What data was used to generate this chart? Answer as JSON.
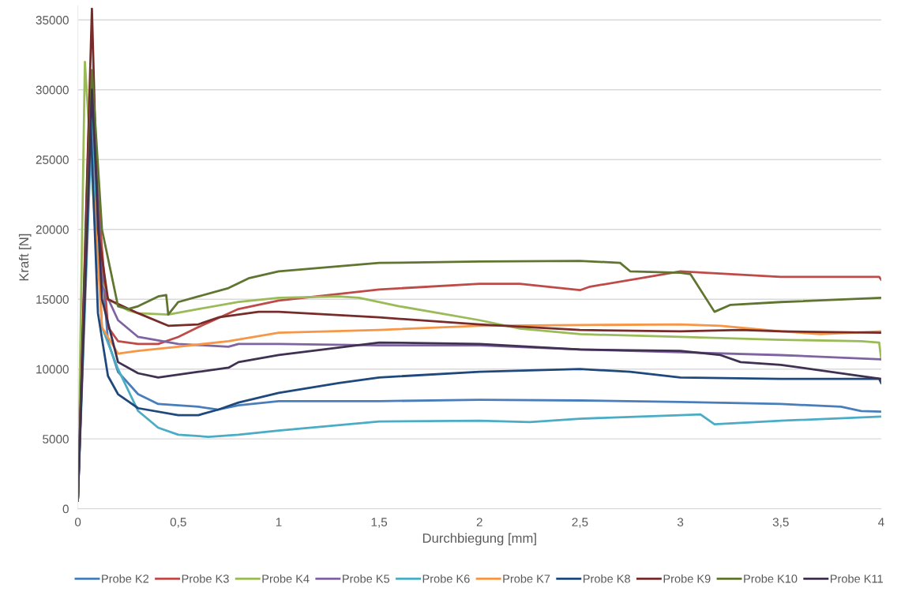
{
  "chart_data": {
    "type": "line",
    "xlabel": "Durchbiegung [mm]",
    "ylabel": "Kraft [N]",
    "xlim": [
      0,
      4
    ],
    "ylim": [
      0,
      36000
    ],
    "xticks": [
      0,
      {
        "value": 0.5,
        "label": "0,5"
      },
      1,
      {
        "value": 1.5,
        "label": "1,5"
      },
      2,
      {
        "value": 2.5,
        "label": "2,5"
      },
      3,
      {
        "value": 3.5,
        "label": "3,5"
      },
      4
    ],
    "yticks": [
      0,
      5000,
      10000,
      15000,
      20000,
      25000,
      30000,
      35000
    ],
    "grid": "y",
    "legend": "bottom",
    "marker": "none",
    "line_style": "solid",
    "series": [
      {
        "name": "Probe K2",
        "color": "#4a7ebb",
        "x": [
          0,
          0.06,
          0.15,
          0.2,
          0.3,
          0.4,
          0.5,
          0.6,
          0.7,
          0.8,
          1.0,
          1.5,
          2,
          2.5,
          3,
          3.5,
          3.8,
          3.9,
          4
        ],
        "values": [
          600,
          28000,
          12000,
          9800,
          8200,
          7500,
          7400,
          7300,
          7100,
          7400,
          7700,
          7700,
          7800,
          7750,
          7650,
          7500,
          7300,
          7000,
          6950
        ]
      },
      {
        "name": "Probe K3",
        "color": "#be4b48",
        "x": [
          0,
          0.06,
          0.15,
          0.2,
          0.3,
          0.4,
          0.5,
          0.6,
          0.8,
          1.0,
          1.5,
          2.0,
          2.2,
          2.5,
          2.55,
          2.8,
          3.0,
          3.5,
          3.99,
          4.0
        ],
        "values": [
          600,
          30000,
          13000,
          12000,
          11800,
          11800,
          12300,
          13000,
          14300,
          14900,
          15700,
          16100,
          16100,
          15650,
          15900,
          16500,
          17000,
          16600,
          16600,
          16400
        ]
      },
      {
        "name": "Probe K4",
        "color": "#9bbb59",
        "x": [
          0,
          0.035,
          0.1,
          0.15,
          0.25,
          0.3,
          0.45,
          0.6,
          0.8,
          1.0,
          1.3,
          1.4,
          1.6,
          1.8,
          2.0,
          2.2,
          2.5,
          3.0,
          3.5,
          3.9,
          3.99,
          4.0
        ],
        "values": [
          600,
          32000,
          17000,
          15000,
          14200,
          14000,
          13900,
          14300,
          14800,
          15100,
          15200,
          15100,
          14500,
          14000,
          13500,
          12900,
          12500,
          12300,
          12100,
          12000,
          11900,
          10700
        ]
      },
      {
        "name": "Probe K5",
        "color": "#8064a2",
        "x": [
          0,
          0.07,
          0.12,
          0.2,
          0.3,
          0.5,
          0.75,
          0.8,
          1.0,
          1.5,
          2,
          2.5,
          3,
          3.5,
          4
        ],
        "values": [
          600,
          30700,
          16000,
          13500,
          12300,
          11800,
          11600,
          11800,
          11800,
          11700,
          11700,
          11400,
          11200,
          11000,
          10700
        ]
      },
      {
        "name": "Probe K6",
        "color": "#4bacc6",
        "x": [
          0,
          0.07,
          0.12,
          0.2,
          0.3,
          0.4,
          0.5,
          0.65,
          0.8,
          1.0,
          1.5,
          2,
          2.25,
          2.5,
          3.0,
          3.1,
          3.17,
          3.5,
          4
        ],
        "values": [
          600,
          28000,
          13000,
          10000,
          7000,
          5800,
          5300,
          5150,
          5300,
          5600,
          6250,
          6300,
          6200,
          6450,
          6700,
          6750,
          6050,
          6300,
          6600
        ]
      },
      {
        "name": "Probe K7",
        "color": "#f79646",
        "x": [
          0,
          0.06,
          0.12,
          0.2,
          0.3,
          0.5,
          0.75,
          1.0,
          1.5,
          2.0,
          2.5,
          3.0,
          3.2,
          3.5,
          3.7,
          4.0
        ],
        "values": [
          600,
          27000,
          13000,
          11100,
          11300,
          11600,
          12000,
          12600,
          12800,
          13100,
          13150,
          13200,
          13100,
          12700,
          12500,
          12700
        ]
      },
      {
        "name": "Probe K8",
        "color": "#1f497d",
        "x": [
          0,
          0.06,
          0.1,
          0.15,
          0.2,
          0.3,
          0.5,
          0.6,
          0.7,
          0.8,
          1.0,
          1.3,
          1.5,
          2,
          2.5,
          2.75,
          3.0,
          3.5,
          3.99,
          4.0
        ],
        "values": [
          600,
          29000,
          14000,
          9500,
          8200,
          7200,
          6700,
          6700,
          7100,
          7600,
          8300,
          9000,
          9400,
          9800,
          10000,
          9800,
          9400,
          9300,
          9300,
          9000
        ]
      },
      {
        "name": "Probe K9",
        "color": "#772c2a",
        "x": [
          0,
          0.07,
          0.1,
          0.15,
          0.3,
          0.45,
          0.6,
          0.7,
          0.9,
          1.0,
          1.5,
          2.0,
          2.5,
          3.0,
          3.3,
          3.5,
          4.0
        ],
        "values": [
          600,
          35800,
          20000,
          15000,
          14000,
          13100,
          13200,
          13700,
          14100,
          14100,
          13700,
          13200,
          12800,
          12700,
          12800,
          12700,
          12600
        ]
      },
      {
        "name": "Probe K10",
        "color": "#5f7530",
        "x": [
          0,
          0.07,
          0.12,
          0.2,
          0.25,
          0.3,
          0.4,
          0.44,
          0.45,
          0.5,
          0.6,
          0.75,
          0.85,
          1.0,
          1.5,
          2,
          2.5,
          2.7,
          2.75,
          3.0,
          3.05,
          3.17,
          3.25,
          3.5,
          4.0
        ],
        "values": [
          600,
          31400,
          20000,
          14500,
          14300,
          14500,
          15200,
          15300,
          13900,
          14800,
          15200,
          15800,
          16500,
          17000,
          17600,
          17700,
          17750,
          17600,
          17000,
          16900,
          16800,
          14100,
          14600,
          14800,
          15100
        ]
      },
      {
        "name": "Probe K11",
        "color": "#403152",
        "x": [
          0,
          0.07,
          0.12,
          0.2,
          0.3,
          0.4,
          0.6,
          0.75,
          0.8,
          1.0,
          1.5,
          2.0,
          2.5,
          3.0,
          3.2,
          3.3,
          3.5,
          3.9,
          4.0
        ],
        "values": [
          600,
          30000,
          15000,
          10500,
          9700,
          9400,
          9800,
          10100,
          10500,
          11000,
          11900,
          11800,
          11400,
          11300,
          11000,
          10500,
          10300,
          9500,
          9300
        ]
      }
    ]
  }
}
